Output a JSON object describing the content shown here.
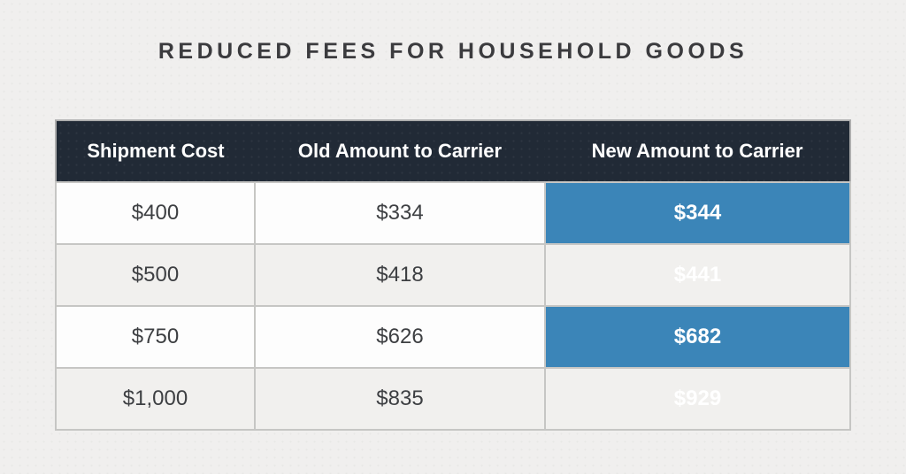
{
  "title": "REDUCED FEES FOR HOUSEHOLD GOODS",
  "chart_data": {
    "type": "table",
    "title": "REDUCED FEES FOR HOUSEHOLD GOODS",
    "columns": [
      "Shipment Cost",
      "Old Amount to Carrier",
      "New Amount to Carrier"
    ],
    "rows": [
      [
        "$400",
        "$334",
        "$344"
      ],
      [
        "$500",
        "$418",
        "$441"
      ],
      [
        "$750",
        "$626",
        "$682"
      ],
      [
        "$1,000",
        "$835",
        "$929"
      ]
    ],
    "highlighted_column": "New Amount to Carrier",
    "layout_hints": {
      "header_style": "dark bar, white bold text, no internal dividers",
      "row_striping": "white / light gray alternating",
      "highlight": "third column solid blue with white bold values"
    }
  },
  "colors": {
    "page_bg": "#f0efee",
    "header_bg": "#212a36",
    "header_text": "#ffffff",
    "highlight_bg": "#3b85b8",
    "highlight_text": "#ffffff",
    "body_text": "#3d3f42",
    "row_alt_bg": "#f1f0ee",
    "border": "#c6c6c4",
    "title_text": "#3b3b3e"
  }
}
